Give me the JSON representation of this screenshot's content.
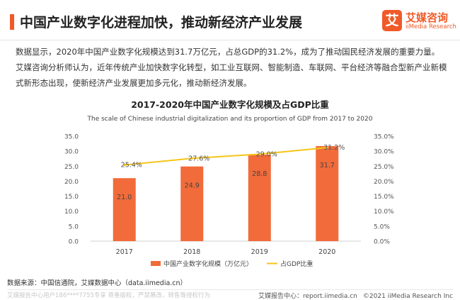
{
  "header": {
    "title": "中国产业数字化进程加快，推动新经济产业发展",
    "logo_mark": "艾",
    "logo_cn": "艾媒咨询",
    "logo_en": "iiMedia Research"
  },
  "body_text": "数据显示，2020年中国产业数字化规模达到31.7万亿元，占总GDP的31.2%，成为了推动国民经济发展的重要力量。艾媒咨询分析师认为，近年传统产业加快数字化转型，如工业互联网、智能制造、车联网、平台经济等融合型新产业新模式新形态出现，使新经济产业发展更加多元化，推动新经济发展。",
  "chart_data": {
    "type": "bar+line",
    "title": "2017-2020年中国产业数字化规模及占GDP比重",
    "subtitle": "The scale of Chinese industrial digitalization and its proportion of GDP from 2017 to 2020",
    "categories": [
      "2017",
      "2018",
      "2019",
      "2020"
    ],
    "series": [
      {
        "name": "中国产业数字化规模（万亿元）",
        "type": "bar",
        "axis": "left",
        "values": [
          21.0,
          24.9,
          28.8,
          31.7
        ],
        "labels": [
          "21.0",
          "24.9",
          "28.8",
          "31.7"
        ],
        "color": "#f26b3a"
      },
      {
        "name": "占GDP比重",
        "type": "line",
        "axis": "right",
        "values": [
          25.4,
          27.6,
          29.0,
          31.2
        ],
        "labels": [
          "25.4%",
          "27.6%",
          "29.0%",
          "31.2%"
        ],
        "color": "#f5c518"
      }
    ],
    "y_left": {
      "min": 0,
      "max": 35,
      "ticks": [
        "0.0",
        "5.0",
        "10.0",
        "15.0",
        "20.0",
        "25.0",
        "30.0",
        "35.0"
      ]
    },
    "y_right": {
      "min": 0,
      "max": 35,
      "ticks": [
        "0.0%",
        "5.0%",
        "10.0%",
        "15.0%",
        "20.0%",
        "25.0%",
        "30.0%",
        "35.0%"
      ]
    },
    "grid": false,
    "legend_position": "bottom"
  },
  "footer": {
    "source": "数据来源：中国信通院，艾媒数据中心（data.iimedia.cn）",
    "watermark": "艾媒报告中心用户186****7755专享 尊重版权，严禁篡改，转售等侵权行为",
    "site": "艾媒报告中心：report.iimedia.cn",
    "copyright": "©2021  iiMedia Research  Inc"
  },
  "colors": {
    "accent": "#f05a28",
    "bar": "#f26b3a",
    "line": "#f5c518"
  }
}
